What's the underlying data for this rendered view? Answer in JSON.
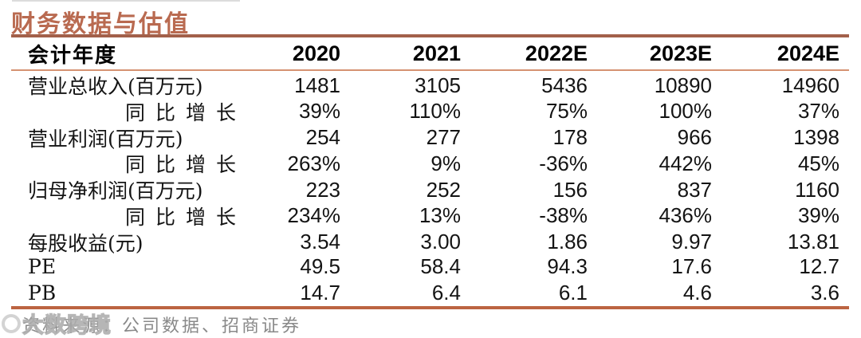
{
  "title": "财务数据与估值",
  "table": {
    "header": {
      "label": "会计年度",
      "years": [
        "2020",
        "2021",
        "2022E",
        "2023E",
        "2024E"
      ]
    },
    "rows": [
      {
        "label": "营业总收入(百万元)",
        "indent": false,
        "values": [
          "1481",
          "3105",
          "5436",
          "10890",
          "14960"
        ]
      },
      {
        "label": "同比增长",
        "indent": true,
        "values": [
          "39%",
          "110%",
          "75%",
          "100%",
          "37%"
        ]
      },
      {
        "label": "营业利润(百万元)",
        "indent": false,
        "values": [
          "254",
          "277",
          "178",
          "966",
          "1398"
        ]
      },
      {
        "label": "同比增长",
        "indent": true,
        "values": [
          "263%",
          "9%",
          "-36%",
          "442%",
          "45%"
        ]
      },
      {
        "label": "归母净利润(百万元)",
        "indent": false,
        "values": [
          "223",
          "252",
          "156",
          "837",
          "1160"
        ]
      },
      {
        "label": "同比增长",
        "indent": true,
        "values": [
          "234%",
          "13%",
          "-38%",
          "436%",
          "39%"
        ]
      },
      {
        "label": "每股收益(元)",
        "indent": false,
        "values": [
          "3.54",
          "3.00",
          "1.86",
          "9.97",
          "13.81"
        ]
      },
      {
        "label": "PE",
        "indent": false,
        "values": [
          "49.5",
          "58.4",
          "94.3",
          "17.6",
          "12.7"
        ]
      },
      {
        "label": "PB",
        "indent": false,
        "values": [
          "14.7",
          "6.4",
          "6.1",
          "4.6",
          "3.6"
        ]
      }
    ]
  },
  "source": {
    "text": "资料来源：公司数据、招商证券"
  },
  "watermark": {
    "text": "大数跨境"
  },
  "colors": {
    "title": "#b96a50",
    "rule_top": "#a2604a",
    "rule_header": "#d59272",
    "rule_bottom": "#bc6442",
    "body_text": "#141414",
    "source_text": "#898989"
  }
}
